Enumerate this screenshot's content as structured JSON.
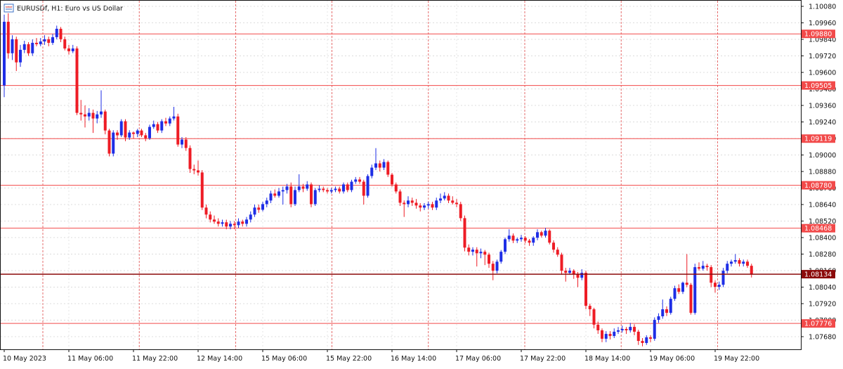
{
  "chart_data": {
    "type": "candlestick",
    "title": "EURUSDf, H1:  Euro vs US Dollar",
    "bull_color": "#1e2ee6",
    "bear_color": "#ee1c25",
    "level_color": "#f24a4a",
    "current_color": "#8b0a0a",
    "ylim": [
      1.07588,
      1.10121
    ],
    "yticks": [
      {
        "value": 1.1008,
        "label": "1.10080"
      },
      {
        "value": 1.0996,
        "label": "1.09960"
      },
      {
        "value": 1.0984,
        "label": "1.09840"
      },
      {
        "value": 1.0972,
        "label": "1.09720"
      },
      {
        "value": 1.096,
        "label": "1.09600"
      },
      {
        "value": 1.0948,
        "label": "1.09480"
      },
      {
        "value": 1.0936,
        "label": "1.09360"
      },
      {
        "value": 1.0924,
        "label": "1.09240"
      },
      {
        "value": 1.0912,
        "label": "1.09120"
      },
      {
        "value": 1.09,
        "label": "1.09000"
      },
      {
        "value": 1.0888,
        "label": "1.08880"
      },
      {
        "value": 1.0876,
        "label": "1.08760"
      },
      {
        "value": 1.0864,
        "label": "1.08640"
      },
      {
        "value": 1.0852,
        "label": "1.08520"
      },
      {
        "value": 1.084,
        "label": "1.08400"
      },
      {
        "value": 1.0828,
        "label": "1.08280"
      },
      {
        "value": 1.0816,
        "label": "1.08160"
      },
      {
        "value": 1.0804,
        "label": "1.08040"
      },
      {
        "value": 1.0792,
        "label": "1.07920"
      },
      {
        "value": 1.078,
        "label": "1.07800"
      },
      {
        "value": 1.0768,
        "label": "1.07680"
      }
    ],
    "grid": true,
    "levels": [
      {
        "value": 1.0988,
        "label": "1.09880"
      },
      {
        "value": 1.09505,
        "label": "1.09505"
      },
      {
        "value": 1.09119,
        "label": "1.09119"
      },
      {
        "value": 1.0878,
        "label": "1.08780"
      },
      {
        "value": 1.08468,
        "label": "1.08468"
      },
      {
        "value": 1.07776,
        "label": "1.07776"
      }
    ],
    "current": {
      "value": 1.08134,
      "label": "1.08134"
    },
    "categories": [
      "10 May 2023",
      null,
      null,
      null,
      null,
      null,
      null,
      null,
      null,
      null,
      null,
      null,
      null,
      null,
      null,
      null,
      "11 May 06:00",
      null,
      null,
      null,
      null,
      null,
      null,
      null,
      null,
      null,
      null,
      null,
      null,
      null,
      null,
      null,
      "11 May 22:00",
      null,
      null,
      null,
      null,
      null,
      null,
      null,
      null,
      null,
      null,
      null,
      null,
      null,
      null,
      null,
      "12 May 14:00",
      null,
      null,
      null,
      null,
      null,
      null,
      null,
      null,
      null,
      null,
      null,
      null,
      null,
      null,
      null,
      "15 May 06:00",
      null,
      null,
      null,
      null,
      null,
      null,
      null,
      null,
      null,
      null,
      null,
      null,
      null,
      null,
      null,
      "15 May 22:00",
      null,
      null,
      null,
      null,
      null,
      null,
      null,
      null,
      null,
      null,
      null,
      null,
      null,
      null,
      null,
      "16 May 14:00",
      null,
      null,
      null,
      null,
      null,
      null,
      null,
      null,
      null,
      null,
      null,
      null,
      null,
      null,
      null,
      "17 May 06:00",
      null,
      null,
      null,
      null,
      null,
      null,
      null,
      null,
      null,
      null,
      null,
      null,
      null,
      null,
      null,
      "17 May 22:00",
      null,
      null,
      null,
      null,
      null,
      null,
      null,
      null,
      null,
      null,
      null,
      null,
      null,
      null,
      null,
      "18 May 14:00",
      null,
      null,
      null,
      null,
      null,
      null,
      null,
      null,
      null,
      null,
      null,
      null,
      null,
      null,
      null,
      "19 May 06:00",
      null,
      null,
      null,
      null,
      null,
      null,
      null,
      null,
      null,
      null,
      null,
      null,
      null,
      null,
      null,
      "19 May 22:00",
      null,
      null,
      null,
      null,
      null,
      null,
      null,
      null,
      null
    ],
    "ohlc": [
      [
        1.09505,
        1.1002,
        1.0942,
        1.09968
      ],
      [
        1.09968,
        1.1003,
        1.097,
        1.09739
      ],
      [
        1.09739,
        1.0987,
        1.0969,
        1.09841
      ],
      [
        1.09841,
        1.0986,
        1.0961,
        1.09673
      ],
      [
        1.09673,
        1.098,
        1.0964,
        1.09764
      ],
      [
        1.09764,
        1.0983,
        1.0974,
        1.09805
      ],
      [
        1.09805,
        1.0982,
        1.0972,
        1.09739
      ],
      [
        1.09739,
        1.0984,
        1.0972,
        1.09815
      ],
      [
        1.09815,
        1.0985,
        1.0979,
        1.09805
      ],
      [
        1.09805,
        1.0985,
        1.0979,
        1.09825
      ],
      [
        1.09825,
        1.0987,
        1.098,
        1.09841
      ],
      [
        1.09841,
        1.0986,
        1.0979,
        1.09815
      ],
      [
        1.09815,
        1.0988,
        1.098,
        1.09856
      ],
      [
        1.09856,
        1.0994,
        1.0984,
        1.09917
      ],
      [
        1.09917,
        1.0993,
        1.0982,
        1.09841
      ],
      [
        1.09841,
        1.0986,
        1.0976,
        1.09774
      ],
      [
        1.09774,
        1.098,
        1.0973,
        1.09754
      ],
      [
        1.09754,
        1.098,
        1.0974,
        1.09774
      ],
      [
        1.09774,
        1.0979,
        1.0929,
        1.09306
      ],
      [
        1.09306,
        1.094,
        1.0925,
        1.09295
      ],
      [
        1.09295,
        1.0936,
        1.092,
        1.0928
      ],
      [
        1.0928,
        1.0934,
        1.0925,
        1.09306
      ],
      [
        1.09306,
        1.0933,
        1.0916,
        1.09265
      ],
      [
        1.09265,
        1.0932,
        1.0923,
        1.09295
      ],
      [
        1.09295,
        1.0947,
        1.0927,
        1.09316
      ],
      [
        1.09316,
        1.0933,
        1.0915,
        1.09178
      ],
      [
        1.09178,
        1.0919,
        1.0899,
        1.0901
      ],
      [
        1.0901,
        1.0918,
        1.0899,
        1.09163
      ],
      [
        1.09163,
        1.0918,
        1.0911,
        1.09143
      ],
      [
        1.09143,
        1.0926,
        1.0913,
        1.09245
      ],
      [
        1.09245,
        1.0926,
        1.091,
        1.09127
      ],
      [
        1.09127,
        1.0918,
        1.0911,
        1.09163
      ],
      [
        1.09163,
        1.0917,
        1.0912,
        1.09153
      ],
      [
        1.09153,
        1.0919,
        1.0913,
        1.09178
      ],
      [
        1.09178,
        1.0919,
        1.0913,
        1.09143
      ],
      [
        1.09143,
        1.0916,
        1.091,
        1.09122
      ],
      [
        1.09122,
        1.0922,
        1.0911,
        1.09204
      ],
      [
        1.09204,
        1.0925,
        1.0919,
        1.09224
      ],
      [
        1.09224,
        1.0924,
        1.0916,
        1.09178
      ],
      [
        1.09178,
        1.0926,
        1.0916,
        1.09245
      ],
      [
        1.09245,
        1.0927,
        1.0921,
        1.09229
      ],
      [
        1.09229,
        1.0928,
        1.0921,
        1.09265
      ],
      [
        1.09265,
        1.0935,
        1.0925,
        1.0928
      ],
      [
        1.0928,
        1.093,
        1.0906,
        1.09076
      ],
      [
        1.09076,
        1.0913,
        1.0905,
        1.09112
      ],
      [
        1.09112,
        1.0913,
        1.0903,
        1.09051
      ],
      [
        1.09051,
        1.0907,
        1.0887,
        1.08898
      ],
      [
        1.08898,
        1.0893,
        1.0886,
        1.08888
      ],
      [
        1.08888,
        1.0896,
        1.0885,
        1.08873
      ],
      [
        1.08873,
        1.0889,
        1.086,
        1.08618
      ],
      [
        1.08618,
        1.0864,
        1.0854,
        1.08567
      ],
      [
        1.08567,
        1.0859,
        1.0851,
        1.08531
      ],
      [
        1.08531,
        1.0856,
        1.085,
        1.08516
      ],
      [
        1.08516,
        1.0854,
        1.0848,
        1.085
      ],
      [
        1.085,
        1.0853,
        1.0848,
        1.08511
      ],
      [
        1.08511,
        1.0853,
        1.0846,
        1.0848
      ],
      [
        1.0848,
        1.0852,
        1.0846,
        1.085
      ],
      [
        1.085,
        1.0852,
        1.0846,
        1.0849
      ],
      [
        1.0849,
        1.0854,
        1.0847,
        1.08516
      ],
      [
        1.08516,
        1.0853,
        1.0848,
        1.085
      ],
      [
        1.085,
        1.0855,
        1.0848,
        1.08531
      ],
      [
        1.08531,
        1.0859,
        1.0851,
        1.08567
      ],
      [
        1.08567,
        1.0864,
        1.0855,
        1.08618
      ],
      [
        1.08618,
        1.0864,
        1.0858,
        1.08602
      ],
      [
        1.08602,
        1.0866,
        1.0859,
        1.08643
      ],
      [
        1.08643,
        1.0869,
        1.0862,
        1.08669
      ],
      [
        1.08669,
        1.0874,
        1.0865,
        1.0872
      ],
      [
        1.0872,
        1.0875,
        1.0869,
        1.08704
      ],
      [
        1.08704,
        1.0876,
        1.0869,
        1.08735
      ],
      [
        1.08735,
        1.0877,
        1.0864,
        1.08745
      ],
      [
        1.08745,
        1.0879,
        1.0872,
        1.08771
      ],
      [
        1.08771,
        1.088,
        1.0862,
        1.08643
      ],
      [
        1.08643,
        1.0877,
        1.0863,
        1.08745
      ],
      [
        1.08745,
        1.0886,
        1.0873,
        1.08771
      ],
      [
        1.08771,
        1.0879,
        1.0873,
        1.08755
      ],
      [
        1.08755,
        1.0881,
        1.0874,
        1.08786
      ],
      [
        1.08786,
        1.088,
        1.0862,
        1.08643
      ],
      [
        1.08643,
        1.0876,
        1.0863,
        1.08745
      ],
      [
        1.08745,
        1.0878,
        1.0873,
        1.08755
      ],
      [
        1.08755,
        1.0877,
        1.0873,
        1.08745
      ],
      [
        1.08745,
        1.0876,
        1.0872,
        1.08735
      ],
      [
        1.08735,
        1.0876,
        1.0872,
        1.08745
      ],
      [
        1.08745,
        1.0877,
        1.0873,
        1.08755
      ],
      [
        1.08755,
        1.0877,
        1.0872,
        1.08735
      ],
      [
        1.08735,
        1.088,
        1.0872,
        1.08786
      ],
      [
        1.08786,
        1.088,
        1.0873,
        1.08745
      ],
      [
        1.08745,
        1.0882,
        1.0873,
        1.08806
      ],
      [
        1.08806,
        1.0884,
        1.0879,
        1.08822
      ],
      [
        1.08822,
        1.0884,
        1.0879,
        1.08806
      ],
      [
        1.08806,
        1.0882,
        1.0864,
        1.08704
      ],
      [
        1.08704,
        1.0886,
        1.0869,
        1.08847
      ],
      [
        1.08847,
        1.0893,
        1.0883,
        1.08908
      ],
      [
        1.08908,
        1.0905,
        1.0889,
        1.08939
      ],
      [
        1.08939,
        1.0896,
        1.0888,
        1.08908
      ],
      [
        1.08908,
        1.0897,
        1.0889,
        1.08949
      ],
      [
        1.08949,
        1.0896,
        1.0884,
        1.08857
      ],
      [
        1.08857,
        1.0887,
        1.0877,
        1.08786
      ],
      [
        1.08786,
        1.088,
        1.0872,
        1.08735
      ],
      [
        1.08735,
        1.0875,
        1.0863,
        1.08653
      ],
      [
        1.08653,
        1.0867,
        1.0855,
        1.08643
      ],
      [
        1.08643,
        1.087,
        1.0862,
        1.08669
      ],
      [
        1.08669,
        1.0869,
        1.0863,
        1.08653
      ],
      [
        1.08653,
        1.0868,
        1.0861,
        1.08633
      ],
      [
        1.08633,
        1.0865,
        1.0859,
        1.08618
      ],
      [
        1.08618,
        1.0865,
        1.086,
        1.08633
      ],
      [
        1.08633,
        1.0866,
        1.0861,
        1.08643
      ],
      [
        1.08643,
        1.0866,
        1.086,
        1.08618
      ],
      [
        1.08618,
        1.0869,
        1.086,
        1.08669
      ],
      [
        1.08669,
        1.0872,
        1.0865,
        1.08684
      ],
      [
        1.08684,
        1.0873,
        1.0867,
        1.08704
      ],
      [
        1.08704,
        1.0872,
        1.0865,
        1.08669
      ],
      [
        1.08669,
        1.087,
        1.0864,
        1.08653
      ],
      [
        1.08653,
        1.0868,
        1.0862,
        1.08643
      ],
      [
        1.08643,
        1.0866,
        1.0852,
        1.08541
      ],
      [
        1.08541,
        1.0856,
        1.083,
        1.08327
      ],
      [
        1.08327,
        1.0835,
        1.0827,
        1.08297
      ],
      [
        1.08297,
        1.0833,
        1.0827,
        1.08312
      ],
      [
        1.08312,
        1.0833,
        1.0819,
        1.08286
      ],
      [
        1.08286,
        1.0832,
        1.0825,
        1.08297
      ],
      [
        1.08297,
        1.0831,
        1.082,
        1.08276
      ],
      [
        1.08276,
        1.0829,
        1.0818,
        1.0821
      ],
      [
        1.0821,
        1.0823,
        1.0809,
        1.08159
      ],
      [
        1.08159,
        1.0824,
        1.0814,
        1.08225
      ],
      [
        1.08225,
        1.0831,
        1.0821,
        1.08297
      ],
      [
        1.08297,
        1.084,
        1.0828,
        1.08388
      ],
      [
        1.08388,
        1.0846,
        1.0837,
        1.08414
      ],
      [
        1.08414,
        1.0843,
        1.0836,
        1.08378
      ],
      [
        1.08378,
        1.084,
        1.0836,
        1.08388
      ],
      [
        1.08388,
        1.0842,
        1.0837,
        1.08399
      ],
      [
        1.08399,
        1.0841,
        1.0836,
        1.08378
      ],
      [
        1.08378,
        1.0839,
        1.0834,
        1.08363
      ],
      [
        1.08363,
        1.0841,
        1.0834,
        1.08399
      ],
      [
        1.08399,
        1.0846,
        1.0838,
        1.08439
      ],
      [
        1.08439,
        1.0845,
        1.084,
        1.08414
      ],
      [
        1.08414,
        1.0847,
        1.084,
        1.0845
      ],
      [
        1.0845,
        1.0846,
        1.0835,
        1.08363
      ],
      [
        1.08363,
        1.0838,
        1.0829,
        1.08312
      ],
      [
        1.08312,
        1.0833,
        1.0826,
        1.08276
      ],
      [
        1.08276,
        1.0829,
        1.0813,
        1.08159
      ],
      [
        1.08159,
        1.0818,
        1.0808,
        1.08144
      ],
      [
        1.08144,
        1.0818,
        1.0813,
        1.08159
      ],
      [
        1.08159,
        1.0817,
        1.081,
        1.08134
      ],
      [
        1.08134,
        1.0815,
        1.0804,
        1.08108
      ],
      [
        1.08108,
        1.0817,
        1.0809,
        1.08144
      ],
      [
        1.08144,
        1.0816,
        1.0788,
        1.07904
      ],
      [
        1.07904,
        1.0792,
        1.0783,
        1.07879
      ],
      [
        1.07879,
        1.0789,
        1.0774,
        1.07767
      ],
      [
        1.07767,
        1.0779,
        1.077,
        1.07726
      ],
      [
        1.07726,
        1.0774,
        1.0764,
        1.07665
      ],
      [
        1.07665,
        1.0772,
        1.0764,
        1.077
      ],
      [
        1.077,
        1.0772,
        1.0766,
        1.07685
      ],
      [
        1.07685,
        1.0774,
        1.0767,
        1.07716
      ],
      [
        1.07716,
        1.0775,
        1.077,
        1.07726
      ],
      [
        1.07726,
        1.0776,
        1.0771,
        1.07736
      ],
      [
        1.07736,
        1.0775,
        1.077,
        1.07726
      ],
      [
        1.07726,
        1.0778,
        1.0771,
        1.07751
      ],
      [
        1.07751,
        1.0777,
        1.0769,
        1.07716
      ],
      [
        1.07716,
        1.0773,
        1.0762,
        1.07649
      ],
      [
        1.07649,
        1.0767,
        1.0761,
        1.07634
      ],
      [
        1.07634,
        1.0769,
        1.0762,
        1.07675
      ],
      [
        1.07675,
        1.0769,
        1.0764,
        1.07665
      ],
      [
        1.07665,
        1.0782,
        1.0765,
        1.07802
      ],
      [
        1.07802,
        1.0785,
        1.0778,
        1.07828
      ],
      [
        1.07828,
        1.0795,
        1.0781,
        1.07879
      ],
      [
        1.07879,
        1.079,
        1.0783,
        1.07853
      ],
      [
        1.07853,
        1.0797,
        1.0784,
        1.07955
      ],
      [
        1.07955,
        1.0805,
        1.0794,
        1.08032
      ],
      [
        1.08032,
        1.0806,
        1.0799,
        1.08006
      ],
      [
        1.08006,
        1.0808,
        1.0799,
        1.08072
      ],
      [
        1.08072,
        1.0828,
        1.0804,
        1.08057
      ],
      [
        1.08057,
        1.0807,
        1.0784,
        1.07853
      ],
      [
        1.07853,
        1.0821,
        1.0784,
        1.08185
      ],
      [
        1.08185,
        1.0822,
        1.0816,
        1.08174
      ],
      [
        1.08174,
        1.0823,
        1.0816,
        1.08195
      ],
      [
        1.08195,
        1.0821,
        1.0816,
        1.08185
      ],
      [
        1.08185,
        1.082,
        1.0804,
        1.08072
      ],
      [
        1.08072,
        1.0809,
        1.08,
        1.08042
      ],
      [
        1.08042,
        1.0808,
        1.0802,
        1.08057
      ],
      [
        1.08057,
        1.0818,
        1.0804,
        1.08159
      ],
      [
        1.08159,
        1.0823,
        1.0814,
        1.0821
      ],
      [
        1.0821,
        1.0824,
        1.0819,
        1.08225
      ],
      [
        1.08225,
        1.0828,
        1.0821,
        1.08236
      ],
      [
        1.08236,
        1.0825,
        1.0819,
        1.0821
      ],
      [
        1.0821,
        1.0824,
        1.0819,
        1.08225
      ],
      [
        1.08225,
        1.0824,
        1.0818,
        1.08195
      ],
      [
        1.08195,
        1.0821,
        1.0811,
        1.08134
      ]
    ]
  }
}
